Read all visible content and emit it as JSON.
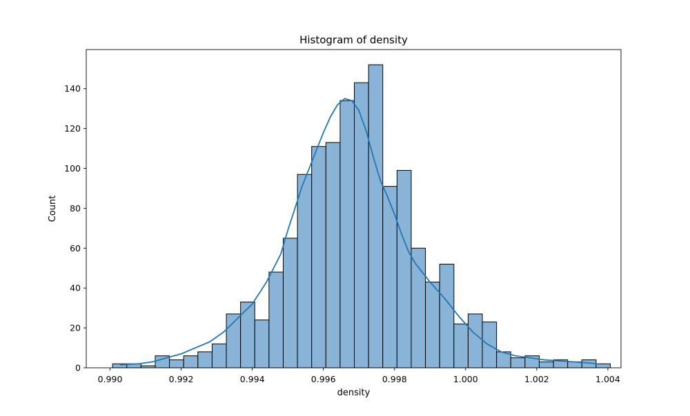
{
  "chart_data": {
    "type": "bar",
    "title": "Histogram of density",
    "xlabel": "density",
    "ylabel": "Count",
    "xlim": [
      0.98933,
      1.00437
    ],
    "ylim": [
      0,
      159.6
    ],
    "x_ticks": [
      0.99,
      0.992,
      0.994,
      0.996,
      0.998,
      1.0,
      1.002,
      1.004
    ],
    "x_tick_labels": [
      "0.990",
      "0.992",
      "0.994",
      "0.996",
      "0.998",
      "1.000",
      "1.002",
      "1.004"
    ],
    "y_ticks": [
      0,
      20,
      40,
      60,
      80,
      100,
      120,
      140
    ],
    "y_tick_labels": [
      "0",
      "20",
      "40",
      "60",
      "80",
      "100",
      "120",
      "140"
    ],
    "grid": false,
    "bins": [
      {
        "x0": 0.99007,
        "x1": 0.99047,
        "count": 2
      },
      {
        "x0": 0.99047,
        "x1": 0.99087,
        "count": 2
      },
      {
        "x0": 0.99087,
        "x1": 0.99127,
        "count": 1
      },
      {
        "x0": 0.99127,
        "x1": 0.99167,
        "count": 6
      },
      {
        "x0": 0.99167,
        "x1": 0.99207,
        "count": 4
      },
      {
        "x0": 0.99207,
        "x1": 0.99247,
        "count": 6
      },
      {
        "x0": 0.99247,
        "x1": 0.99287,
        "count": 8
      },
      {
        "x0": 0.99287,
        "x1": 0.99327,
        "count": 12
      },
      {
        "x0": 0.99327,
        "x1": 0.99367,
        "count": 27
      },
      {
        "x0": 0.99367,
        "x1": 0.99407,
        "count": 33
      },
      {
        "x0": 0.99407,
        "x1": 0.99447,
        "count": 24
      },
      {
        "x0": 0.99447,
        "x1": 0.99487,
        "count": 48
      },
      {
        "x0": 0.99487,
        "x1": 0.99527,
        "count": 65
      },
      {
        "x0": 0.99527,
        "x1": 0.99567,
        "count": 97
      },
      {
        "x0": 0.99567,
        "x1": 0.99607,
        "count": 111
      },
      {
        "x0": 0.99607,
        "x1": 0.99647,
        "count": 113
      },
      {
        "x0": 0.99647,
        "x1": 0.99687,
        "count": 134
      },
      {
        "x0": 0.99687,
        "x1": 0.99727,
        "count": 143
      },
      {
        "x0": 0.99727,
        "x1": 0.99767,
        "count": 152
      },
      {
        "x0": 0.99767,
        "x1": 0.99807,
        "count": 91
      },
      {
        "x0": 0.99807,
        "x1": 0.99847,
        "count": 99
      },
      {
        "x0": 0.99847,
        "x1": 0.99887,
        "count": 60
      },
      {
        "x0": 0.99887,
        "x1": 0.99927,
        "count": 43
      },
      {
        "x0": 0.99927,
        "x1": 0.99967,
        "count": 52
      },
      {
        "x0": 0.99967,
        "x1": 1.00007,
        "count": 22
      },
      {
        "x0": 1.00007,
        "x1": 1.00047,
        "count": 27
      },
      {
        "x0": 1.00047,
        "x1": 1.00087,
        "count": 23
      },
      {
        "x0": 1.00087,
        "x1": 1.00127,
        "count": 8
      },
      {
        "x0": 1.00127,
        "x1": 1.00167,
        "count": 5
      },
      {
        "x0": 1.00167,
        "x1": 1.00207,
        "count": 6
      },
      {
        "x0": 1.00207,
        "x1": 1.00247,
        "count": 3
      },
      {
        "x0": 1.00247,
        "x1": 1.00287,
        "count": 4
      },
      {
        "x0": 1.00287,
        "x1": 1.00327,
        "count": 3
      },
      {
        "x0": 1.00327,
        "x1": 1.00367,
        "count": 4
      },
      {
        "x0": 1.00367,
        "x1": 1.00407,
        "count": 2
      }
    ],
    "kde": {
      "x": [
        0.9903,
        0.9908,
        0.9912,
        0.9916,
        0.992,
        0.9924,
        0.9928,
        0.9932,
        0.9936,
        0.994,
        0.9944,
        0.9948,
        0.995,
        0.9952,
        0.9954,
        0.9956,
        0.9958,
        0.996,
        0.9962,
        0.9964,
        0.9966,
        0.9968,
        0.997,
        0.9972,
        0.9974,
        0.9976,
        0.9978,
        0.998,
        0.9982,
        0.9984,
        0.9986,
        0.999,
        0.9994,
        0.9998,
        1.0002,
        1.0006,
        1.001,
        1.0014,
        1.0018,
        1.0022,
        1.0026,
        1.003,
        1.0034,
        1.0037
      ],
      "y": [
        1.5,
        2,
        3,
        5,
        7,
        10,
        13,
        18,
        25,
        32,
        43,
        57,
        69,
        80,
        91,
        100,
        109,
        118,
        126,
        132,
        135,
        134,
        129,
        119,
        106,
        94,
        86,
        77,
        67,
        58,
        52,
        43,
        35,
        26,
        18,
        12,
        8,
        6,
        5,
        4,
        3.5,
        3,
        2.5,
        2
      ]
    },
    "colors": {
      "bar_fill": "#89b4d8",
      "bar_edge": "#000000",
      "kde_line": "#1f77b4"
    }
  }
}
